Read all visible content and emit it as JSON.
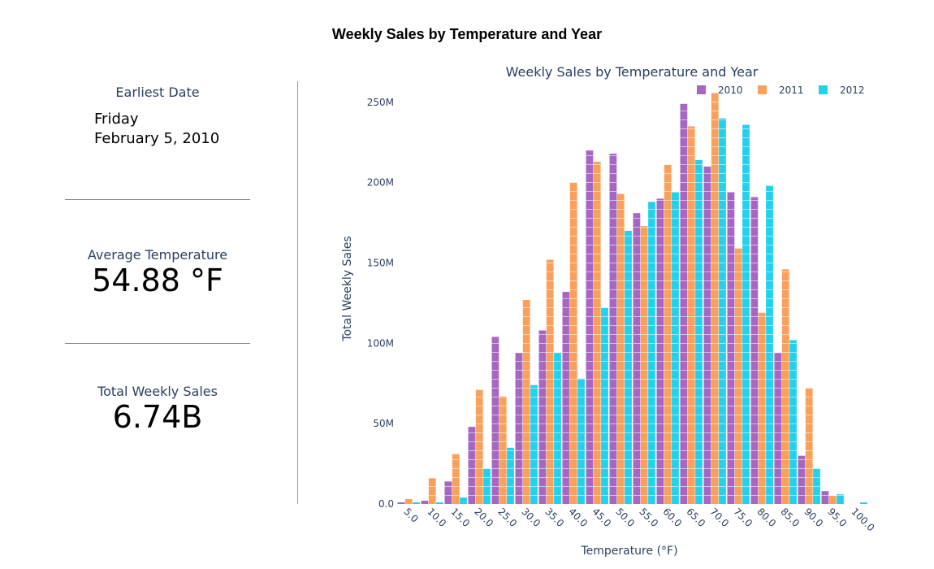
{
  "page": {
    "title": "Weekly Sales by Temperature and Year"
  },
  "sidebar": {
    "earliest_date": {
      "label": "Earliest Date",
      "weekday": "Friday",
      "date": "February 5, 2010"
    },
    "average_temperature": {
      "label": "Average Temperature",
      "value": "54.88 °F"
    },
    "total_sales": {
      "label": "Total Weekly Sales",
      "value": "6.74B"
    }
  },
  "colors": {
    "2010": "#a667c3",
    "2011": "#fba05b",
    "2012": "#22d1ee",
    "axis_text": "#2a3f5f",
    "divider": "#9a9a9a"
  },
  "chart_data": {
    "type": "bar",
    "title": "Weekly Sales by Temperature and Year",
    "xlabel": "Temperature (°F)",
    "ylabel": "Total Weekly Sales",
    "ylim": [
      0,
      258
    ],
    "y_unit": "M",
    "yticks": [
      0,
      50,
      100,
      150,
      200,
      250
    ],
    "ytick_labels": [
      "0.0",
      "50M",
      "100M",
      "150M",
      "200M",
      "250M"
    ],
    "legend_position": "top-right",
    "grid": false,
    "categories": [
      "5.0",
      "10.0",
      "15.0",
      "20.0",
      "25.0",
      "30.0",
      "35.0",
      "40.0",
      "45.0",
      "50.0",
      "55.0",
      "60.0",
      "65.0",
      "70.0",
      "75.0",
      "80.0",
      "85.0",
      "90.0",
      "95.0",
      "100.0"
    ],
    "series": [
      {
        "name": "2010",
        "values": [
          1,
          2,
          14,
          48,
          104,
          94,
          108,
          132,
          220,
          218,
          181,
          190,
          249,
          210,
          194,
          191,
          94,
          30,
          8,
          0
        ]
      },
      {
        "name": "2011",
        "values": [
          3,
          16,
          31,
          71,
          67,
          127,
          152,
          200,
          213,
          193,
          173,
          211,
          235,
          256,
          159,
          119,
          146,
          72,
          5,
          0
        ]
      },
      {
        "name": "2012",
        "values": [
          1,
          1,
          4,
          22,
          35,
          74,
          94,
          78,
          122,
          170,
          188,
          194,
          214,
          240,
          236,
          198,
          102,
          22,
          6,
          1
        ]
      }
    ]
  }
}
